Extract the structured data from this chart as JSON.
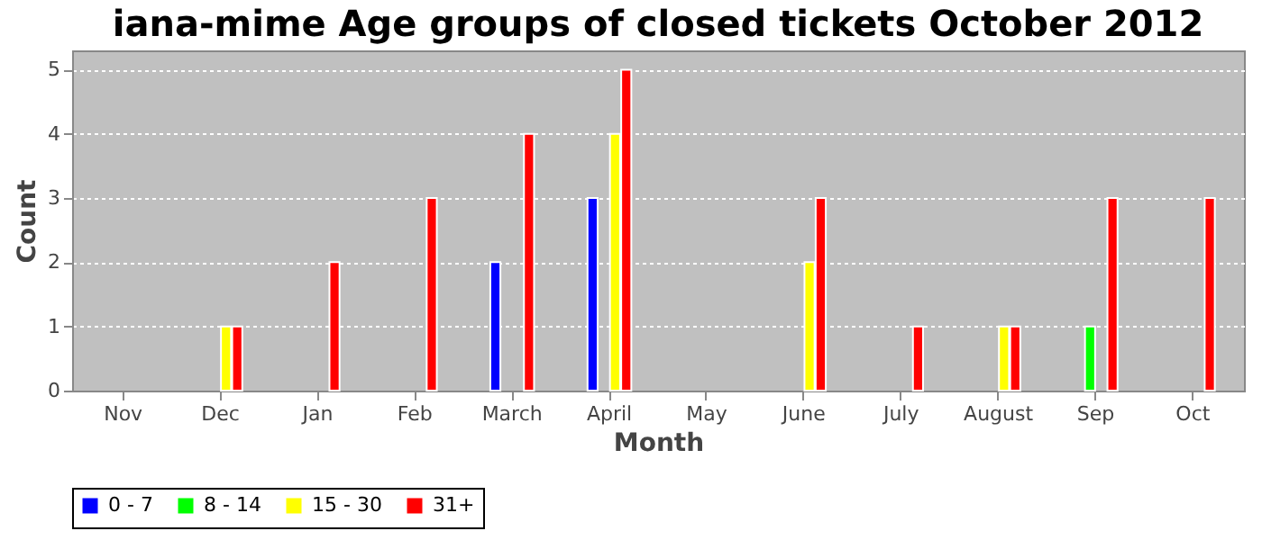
{
  "chart_data": {
    "type": "bar",
    "title": "iana-mime Age groups of closed tickets October 2012",
    "xlabel": "Month",
    "ylabel": "Count",
    "categories": [
      "Nov",
      "Dec",
      "Jan",
      "Feb",
      "March",
      "April",
      "May",
      "June",
      "July",
      "August",
      "Sep",
      "Oct"
    ],
    "series": [
      {
        "name": "0 - 7",
        "color": "#0000ff",
        "values": [
          0,
          0,
          0,
          0,
          2,
          3,
          0,
          0,
          0,
          0,
          0,
          0
        ]
      },
      {
        "name": "8 - 14",
        "color": "#00ff00",
        "values": [
          0,
          0,
          0,
          0,
          0,
          0,
          0,
          0,
          0,
          0,
          1,
          0
        ]
      },
      {
        "name": "15 - 30",
        "color": "#ffff00",
        "values": [
          0,
          1,
          0,
          0,
          0,
          4,
          0,
          2,
          0,
          1,
          0,
          0
        ]
      },
      {
        "name": "31+",
        "color": "#ff0000",
        "values": [
          0,
          1,
          2,
          3,
          4,
          5,
          0,
          3,
          1,
          1,
          3,
          3
        ]
      }
    ],
    "ylim": [
      0,
      5.3
    ],
    "yticks": [
      0,
      1,
      2,
      3,
      4,
      5
    ],
    "grid": "y",
    "legend": "bottom"
  }
}
